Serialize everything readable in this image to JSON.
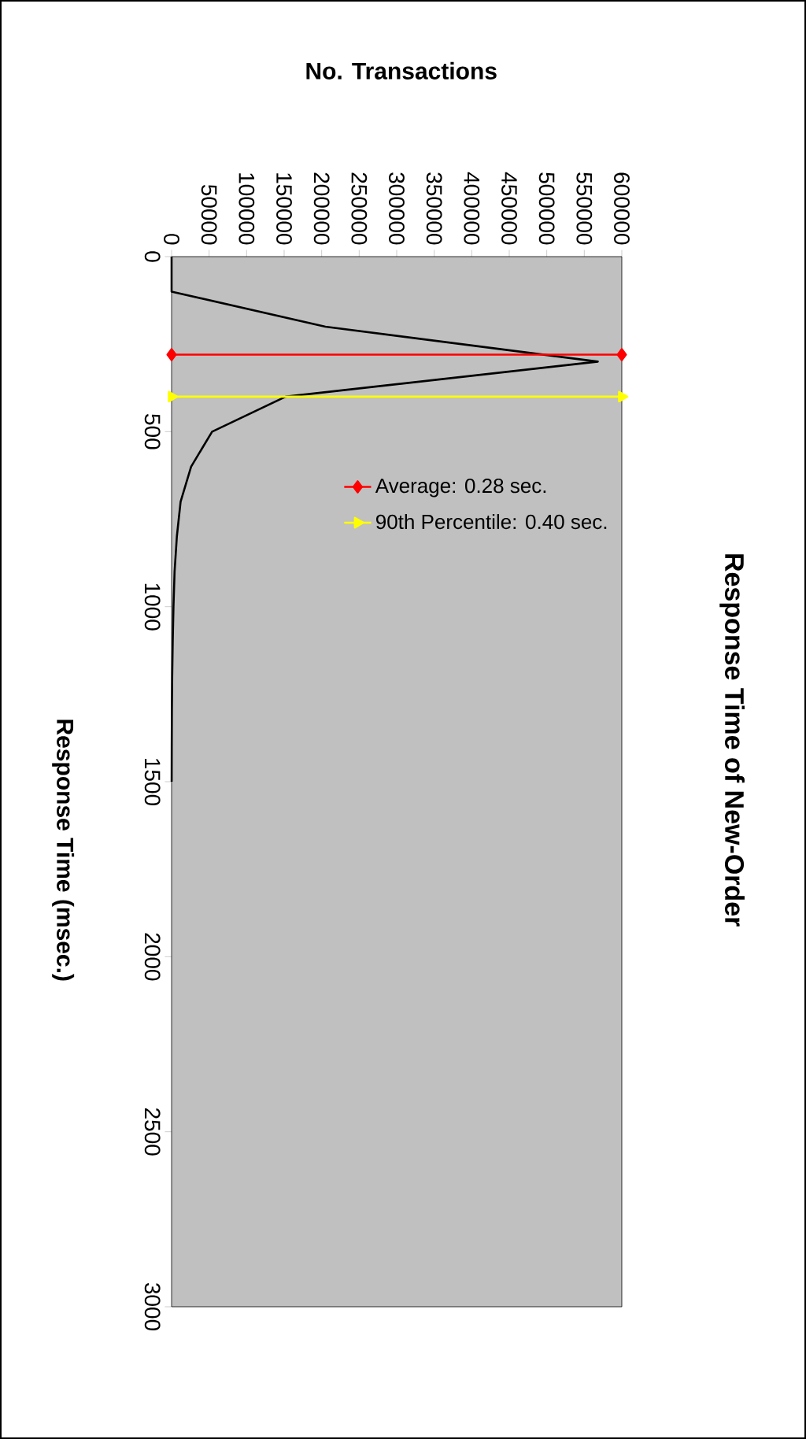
{
  "chart_data": {
    "type": "line",
    "title": "Response Time of New-Order",
    "xlabel": "No. Transactions",
    "ylabel": "Response Time (msec.)",
    "xlim": [
      0,
      600000
    ],
    "xticks": [
      0,
      50000,
      100000,
      150000,
      200000,
      250000,
      300000,
      350000,
      400000,
      450000,
      500000,
      550000,
      600000
    ],
    "ylim": [
      3000,
      0
    ],
    "yticks": [
      0,
      500,
      1000,
      1500,
      2000,
      2500,
      3000
    ],
    "grid": false,
    "legend": "top right",
    "series": [
      {
        "color": "#000000",
        "marker": "none",
        "x": [
          0,
          0,
          205000,
          568000,
          152000,
          54000,
          26000,
          12000,
          7000,
          4000,
          2500,
          1500,
          800,
          400,
          200,
          100
        ],
        "values": [
          0,
          100,
          200,
          300,
          400,
          500,
          600,
          700,
          800,
          900,
          1000,
          1100,
          1200,
          1300,
          1400,
          1500
        ]
      },
      {
        "name": "Average: 0.28 sec.",
        "color": "#ff0000",
        "marker": "diamond",
        "x": [
          0,
          600000
        ],
        "values": [
          280,
          280
        ]
      },
      {
        "name": "90th Percentile: 0.40 sec.",
        "color": "#ffff00",
        "marker": "triangle",
        "x": [
          0,
          600000
        ],
        "values": [
          400,
          400
        ]
      }
    ]
  }
}
